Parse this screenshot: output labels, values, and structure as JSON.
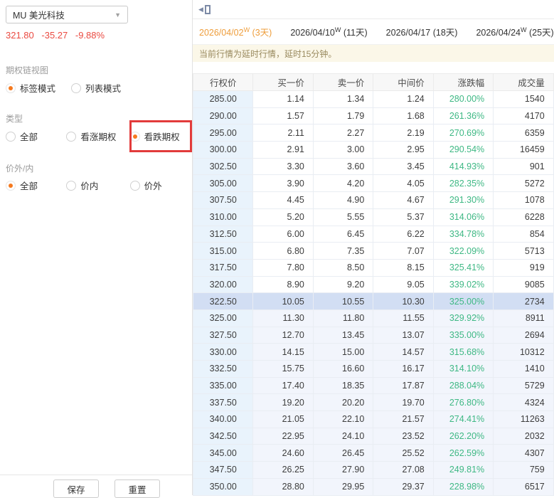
{
  "sidebar": {
    "symbol_select": {
      "value": "MU 美光科技"
    },
    "quote": {
      "price": "321.80",
      "change": "-35.27",
      "change_pct": "-9.88%"
    },
    "groups": [
      {
        "label": "期权链视图",
        "options": [
          {
            "label": "标签模式",
            "selected": true
          },
          {
            "label": "列表模式",
            "selected": false
          }
        ]
      },
      {
        "label": "类型",
        "options": [
          {
            "label": "全部",
            "selected": false
          },
          {
            "label": "看涨期权",
            "selected": false
          },
          {
            "label": "看跌期权",
            "selected": true,
            "highlighted": true
          }
        ]
      },
      {
        "label": "价外/内",
        "options": [
          {
            "label": "全部",
            "selected": true
          },
          {
            "label": "价内",
            "selected": false
          },
          {
            "label": "价外",
            "selected": false
          }
        ]
      }
    ],
    "buttons": {
      "save": "保存",
      "reset": "重置"
    }
  },
  "main": {
    "tabs": [
      {
        "date": "2026/04/02",
        "week_mark": "W",
        "days": "(3天)",
        "active": true
      },
      {
        "date": "2026/04/10",
        "week_mark": "W",
        "days": "(11天)",
        "active": false
      },
      {
        "date": "2026/04/17",
        "week_mark": "",
        "days": "(18天)",
        "active": false
      },
      {
        "date": "2026/04/24",
        "week_mark": "W",
        "days": "(25天)",
        "active": false
      }
    ],
    "notice": "当前行情为延时行情，延时15分钟。",
    "table": {
      "columns": [
        "行权价",
        "买一价",
        "卖一价",
        "中间价",
        "涨跌幅",
        "成交量"
      ],
      "column_keys": [
        "strike",
        "bid",
        "ask",
        "mid",
        "change",
        "volume"
      ],
      "highlight_strike": "322.50",
      "rows": [
        [
          "285.00",
          "1.14",
          "1.34",
          "1.24",
          "280.00%",
          "1540"
        ],
        [
          "290.00",
          "1.57",
          "1.79",
          "1.68",
          "261.36%",
          "4170"
        ],
        [
          "295.00",
          "2.11",
          "2.27",
          "2.19",
          "270.69%",
          "6359"
        ],
        [
          "300.00",
          "2.91",
          "3.00",
          "2.95",
          "290.54%",
          "16459"
        ],
        [
          "302.50",
          "3.30",
          "3.60",
          "3.45",
          "414.93%",
          "901"
        ],
        [
          "305.00",
          "3.90",
          "4.20",
          "4.05",
          "282.35%",
          "5272"
        ],
        [
          "307.50",
          "4.45",
          "4.90",
          "4.67",
          "291.30%",
          "1078"
        ],
        [
          "310.00",
          "5.20",
          "5.55",
          "5.37",
          "314.06%",
          "6228"
        ],
        [
          "312.50",
          "6.00",
          "6.45",
          "6.22",
          "334.78%",
          "854"
        ],
        [
          "315.00",
          "6.80",
          "7.35",
          "7.07",
          "322.09%",
          "5713"
        ],
        [
          "317.50",
          "7.80",
          "8.50",
          "8.15",
          "325.41%",
          "919"
        ],
        [
          "320.00",
          "8.90",
          "9.20",
          "9.05",
          "339.02%",
          "9085"
        ],
        [
          "322.50",
          "10.05",
          "10.55",
          "10.30",
          "325.00%",
          "2734"
        ],
        [
          "325.00",
          "11.30",
          "11.80",
          "11.55",
          "329.92%",
          "8911"
        ],
        [
          "327.50",
          "12.70",
          "13.45",
          "13.07",
          "335.00%",
          "2694"
        ],
        [
          "330.00",
          "14.15",
          "15.00",
          "14.57",
          "315.68%",
          "10312"
        ],
        [
          "332.50",
          "15.75",
          "16.60",
          "16.17",
          "314.10%",
          "1410"
        ],
        [
          "335.00",
          "17.40",
          "18.35",
          "17.87",
          "288.04%",
          "5729"
        ],
        [
          "337.50",
          "19.20",
          "20.20",
          "19.70",
          "276.80%",
          "4324"
        ],
        [
          "340.00",
          "21.05",
          "22.10",
          "21.57",
          "274.41%",
          "11263"
        ],
        [
          "342.50",
          "22.95",
          "24.10",
          "23.52",
          "262.20%",
          "2032"
        ],
        [
          "345.00",
          "24.60",
          "26.45",
          "25.52",
          "262.59%",
          "4307"
        ],
        [
          "347.50",
          "26.25",
          "27.90",
          "27.08",
          "249.81%",
          "759"
        ],
        [
          "350.00",
          "28.80",
          "29.95",
          "29.37",
          "228.98%",
          "6517"
        ]
      ]
    }
  },
  "colors": {
    "accent_orange": "#ee9d3b",
    "radio_orange": "#f57a1f",
    "price_down_red": "#ea4a41",
    "change_green": "#3eb884",
    "annotation_red": "#e23b3b",
    "strike_col_bg": "#e9f3fc",
    "itm_row_bg": "#f2f5fc",
    "highlight_row_bg": "#d2def3",
    "notice_bg": "#fbf7e8"
  }
}
